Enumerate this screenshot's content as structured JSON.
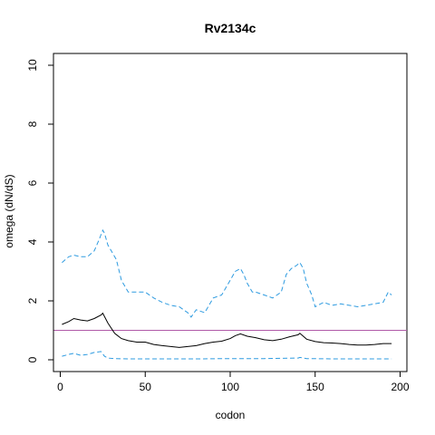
{
  "chart_data": {
    "type": "line",
    "title": "Rv2134c",
    "xlabel": "codon",
    "ylabel": "omega (dN/dS)",
    "xlim": [
      -4,
      204
    ],
    "ylim": [
      -0.4,
      10.4
    ],
    "xticks": [
      0,
      50,
      100,
      150,
      200
    ],
    "yticks": [
      0,
      2,
      4,
      6,
      8,
      10
    ],
    "grid": false,
    "reference_line": {
      "y": 1,
      "color": "#b05aa8"
    },
    "series": [
      {
        "style": "solid",
        "color": "#000000",
        "x": [
          1,
          5,
          8,
          12,
          16,
          20,
          24,
          25,
          28,
          32,
          36,
          40,
          45,
          50,
          55,
          60,
          65,
          70,
          75,
          80,
          85,
          90,
          95,
          100,
          103,
          106,
          110,
          115,
          120,
          125,
          130,
          135,
          140,
          141,
          145,
          150,
          155,
          160,
          165,
          170,
          175,
          180,
          185,
          190,
          195
        ],
        "y": [
          1.2,
          1.3,
          1.4,
          1.35,
          1.32,
          1.4,
          1.52,
          1.58,
          1.25,
          0.9,
          0.72,
          0.65,
          0.6,
          0.6,
          0.52,
          0.48,
          0.45,
          0.42,
          0.45,
          0.48,
          0.55,
          0.6,
          0.63,
          0.72,
          0.82,
          0.88,
          0.8,
          0.75,
          0.68,
          0.65,
          0.7,
          0.78,
          0.85,
          0.9,
          0.7,
          0.62,
          0.58,
          0.57,
          0.55,
          0.52,
          0.5,
          0.5,
          0.52,
          0.55,
          0.55
        ]
      },
      {
        "style": "dashed",
        "color": "#2e9be0",
        "x": [
          1,
          3,
          5,
          8,
          12,
          16,
          20,
          23,
          25,
          26,
          28,
          30,
          33,
          36,
          40,
          45,
          50,
          55,
          60,
          65,
          70,
          75,
          77,
          80,
          85,
          90,
          95,
          100,
          103,
          106,
          108,
          110,
          113,
          115,
          120,
          125,
          130,
          133,
          136,
          139,
          141,
          143,
          145,
          148,
          150,
          155,
          160,
          165,
          170,
          175,
          180,
          185,
          190,
          193,
          195
        ],
        "y": [
          3.3,
          3.4,
          3.5,
          3.55,
          3.5,
          3.5,
          3.7,
          4.1,
          4.4,
          4.3,
          3.9,
          3.7,
          3.4,
          2.7,
          2.3,
          2.3,
          2.3,
          2.1,
          1.95,
          1.85,
          1.8,
          1.6,
          1.45,
          1.7,
          1.6,
          2.1,
          2.2,
          2.7,
          3.0,
          3.1,
          2.9,
          2.6,
          2.3,
          2.3,
          2.2,
          2.1,
          2.3,
          2.9,
          3.1,
          3.2,
          3.3,
          3.1,
          2.6,
          2.2,
          1.8,
          1.95,
          1.85,
          1.9,
          1.85,
          1.8,
          1.85,
          1.9,
          1.95,
          2.3,
          2.2
        ]
      },
      {
        "style": "dashed",
        "color": "#2e9be0",
        "x": [
          1,
          5,
          8,
          12,
          16,
          20,
          24,
          26,
          28,
          32,
          40,
          60,
          80,
          100,
          120,
          140,
          141,
          145,
          160,
          180,
          195
        ],
        "y": [
          0.12,
          0.18,
          0.22,
          0.15,
          0.18,
          0.25,
          0.28,
          0.12,
          0.06,
          0.04,
          0.03,
          0.03,
          0.03,
          0.04,
          0.04,
          0.06,
          0.08,
          0.04,
          0.03,
          0.03,
          0.03
        ]
      }
    ]
  }
}
